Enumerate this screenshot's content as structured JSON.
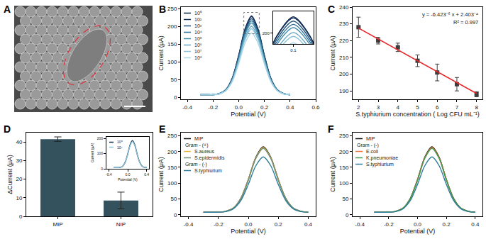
{
  "chart_data": [
    {
      "type": "image",
      "title": "A"
    },
    {
      "type": "line",
      "title": "B",
      "x_label": "Potential (V)",
      "y_label": "Current (μA)",
      "x": [
        -0.3,
        -0.25,
        -0.2,
        -0.15,
        -0.1,
        -0.05,
        0,
        0.05,
        0.1,
        0.15,
        0.2,
        0.25,
        0.3,
        0.35,
        0.4
      ],
      "series": [
        {
          "name": "10⁰",
          "color": "#0b2545",
          "values": [
            8,
            8,
            8,
            11,
            22,
            55,
            119,
            194,
            230,
            194,
            119,
            55,
            22,
            11,
            8
          ]
        },
        {
          "name": "10²",
          "color": "#13315c",
          "values": [
            8,
            8,
            8,
            11,
            22,
            54,
            118,
            193,
            228,
            193,
            118,
            54,
            22,
            11,
            8
          ]
        },
        {
          "name": "10³",
          "color": "#1d4e7a",
          "values": [
            8,
            8,
            8,
            11,
            22,
            53,
            115,
            188,
            222,
            188,
            115,
            53,
            22,
            11,
            8
          ]
        },
        {
          "name": "10⁴",
          "color": "#2a6f97",
          "values": [
            8,
            8,
            8,
            11,
            21,
            52,
            112,
            183,
            216,
            183,
            112,
            52,
            21,
            11,
            8
          ]
        },
        {
          "name": "10⁵",
          "color": "#468faf",
          "values": [
            8,
            8,
            8,
            11,
            21,
            51,
            109,
            178,
            210,
            178,
            109,
            51,
            21,
            11,
            8
          ]
        },
        {
          "name": "10⁶",
          "color": "#61a5c2",
          "values": [
            8,
            8,
            8,
            11,
            20,
            49,
            104,
            170,
            201,
            170,
            104,
            49,
            20,
            11,
            8
          ]
        },
        {
          "name": "10⁷",
          "color": "#89c2d9",
          "values": [
            8,
            8,
            8,
            10,
            20,
            47,
            101,
            164,
            194,
            164,
            101,
            47,
            20,
            10,
            8
          ]
        },
        {
          "name": "10⁸",
          "color": "#a9d6e5",
          "values": [
            8,
            8,
            8,
            10,
            19,
            45,
            95,
            154,
            182,
            154,
            95,
            45,
            19,
            10,
            8
          ]
        }
      ],
      "xlim": [
        -0.45,
        0.6
      ],
      "xticks": [
        -0.4,
        -0.2,
        {
          "value": 0,
          "label": "0.0"
        },
        0.2,
        0.4,
        0.6
      ],
      "ylim": [
        -5,
        255
      ],
      "yticks": [
        0,
        50,
        100,
        150,
        200,
        250
      ],
      "legend": "upper left",
      "inset": {
        "xlim": [
          0.04,
          0.16
        ],
        "ylim": [
          180,
          240
        ],
        "xticks": [
          0.1
        ],
        "yticks": [
          200
        ]
      }
    },
    {
      "type": "scatter",
      "title": "C",
      "x_label": "S.typhiurium concentration ( Log CFU mL⁻¹)",
      "y_label": "Current (μA)",
      "x": [
        2,
        3,
        4,
        5,
        6,
        7,
        8
      ],
      "values": [
        228,
        220,
        216,
        208,
        201,
        194,
        188
      ],
      "errors": [
        6,
        2,
        2.5,
        3.5,
        5,
        4,
        1.5
      ],
      "color": "#3d3d3d",
      "marker": "square",
      "fit": {
        "x": [
          2,
          8
        ],
        "values": [
          227.5,
          188.5
        ],
        "color": "#e8262a"
      },
      "annotations": [
        "y = -6.423⁻⁶ x + 2.403⁻⁴",
        "R² = 0.997"
      ],
      "xlim": [
        1.7,
        8.3
      ],
      "xticks": [
        2,
        3,
        4,
        5,
        6,
        7,
        8
      ],
      "ylim": [
        185,
        240
      ],
      "yticks": [
        190,
        200,
        210,
        220,
        230,
        240
      ]
    },
    {
      "type": "bar",
      "title": "D",
      "y_label": "ΔCurrent (μA)",
      "categories": [
        "MIP",
        "NIP"
      ],
      "values": [
        41.5,
        8.5
      ],
      "errors": [
        1.2,
        4.5
      ],
      "color": "#34515e",
      "ylim": [
        0,
        45
      ],
      "yticks": [
        0,
        10,
        20,
        30,
        40
      ],
      "inset": {
        "type": "line",
        "x_label": "Potential (V)",
        "y_label": "Current (μA)",
        "x": [
          -0.3,
          -0.25,
          -0.2,
          -0.15,
          -0.1,
          -0.05,
          0,
          0.05,
          0.1,
          0.15,
          0.2,
          0.25,
          0.3,
          0.35,
          0.4
        ],
        "series": [
          {
            "name": "10⁰",
            "color": "#0b2545",
            "values": [
              8,
              8,
              8,
              10,
              19,
              46,
              97,
              158,
              186,
              158,
              97,
              46,
              19,
              10,
              8
            ]
          },
          {
            "name": "10⁸",
            "color": "#89c2d9",
            "values": [
              8,
              8,
              8,
              10,
              19,
              44,
              94,
              152,
              180,
              152,
              94,
              44,
              19,
              10,
              8
            ]
          }
        ],
        "xlim": [
          -0.45,
          0.45
        ],
        "xticks": [
          -0.4,
          {
            "value": 0,
            "label": "0.0"
          },
          0.4
        ],
        "ylim": [
          0,
          210
        ],
        "yticks": [
          0,
          100,
          200
        ],
        "legend": "upper left"
      }
    },
    {
      "type": "line",
      "title": "E",
      "x_label": "Potential (V)",
      "y_label": "Current (μA)",
      "x": [
        -0.3,
        -0.25,
        -0.2,
        -0.15,
        -0.1,
        -0.05,
        0,
        0.05,
        0.1,
        0.15,
        0.2,
        0.25,
        0.3,
        0.35,
        0.4
      ],
      "series": [
        {
          "name": "MIP",
          "color": "#111111",
          "values": [
            8,
            8,
            8,
            11,
            21,
            52,
            112,
            182,
            215,
            182,
            112,
            52,
            21,
            11,
            8
          ]
        },
        {
          "name": "S.aureus",
          "group": "Gram - (+)",
          "color": "#e6b53d",
          "values": [
            8,
            8,
            8,
            11,
            21,
            51,
            111,
            180,
            213,
            180,
            111,
            51,
            21,
            11,
            8
          ]
        },
        {
          "name": "S.epidermidis",
          "group": "Gram - (+)",
          "color": "#6d8f7a",
          "values": [
            8,
            8,
            8,
            11,
            21,
            51,
            109,
            178,
            210,
            178,
            109,
            51,
            21,
            11,
            8
          ]
        },
        {
          "name": "S.typhiurium",
          "group": "Gram - (-)",
          "color": "#2e7d9a",
          "values": [
            8,
            8,
            8,
            10,
            19,
            45,
            96,
            155,
            183,
            155,
            96,
            45,
            19,
            10,
            8
          ]
        }
      ],
      "xlim": [
        -0.45,
        0.45
      ],
      "xticks": [
        -0.4,
        -0.2,
        {
          "value": 0,
          "label": "0.0"
        },
        0.2,
        0.4
      ],
      "ylim": [
        -5,
        260
      ],
      "yticks": [
        0,
        50,
        100,
        150,
        200,
        250
      ],
      "legend": "upper left"
    },
    {
      "type": "line",
      "title": "F",
      "x_label": "Potential (V)",
      "y_label": "Current (μA)",
      "x": [
        -0.3,
        -0.25,
        -0.2,
        -0.15,
        -0.1,
        -0.05,
        0,
        0.05,
        0.1,
        0.15,
        0.2,
        0.25,
        0.3,
        0.35,
        0.4
      ],
      "series": [
        {
          "name": "MIP",
          "color": "#111111",
          "values": [
            8,
            8,
            8,
            11,
            21,
            52,
            112,
            182,
            215,
            182,
            112,
            52,
            21,
            11,
            8
          ]
        },
        {
          "name": "E.coli",
          "group": "Gram - (-)",
          "color": "#e8743b",
          "values": [
            8,
            8,
            8,
            11,
            21,
            51,
            111,
            180,
            213,
            180,
            111,
            51,
            21,
            11,
            8
          ]
        },
        {
          "name": "K.pneumoniae",
          "group": "Gram - (-)",
          "color": "#3f9b4f",
          "values": [
            8,
            8,
            8,
            11,
            21,
            51,
            109,
            178,
            210,
            178,
            109,
            51,
            21,
            11,
            8
          ]
        },
        {
          "name": "S.typhiurium",
          "group": "Gram - (-)",
          "color": "#2e7d9a",
          "values": [
            8,
            8,
            8,
            10,
            19,
            45,
            96,
            155,
            183,
            155,
            96,
            45,
            19,
            10,
            8
          ]
        }
      ],
      "xlim": [
        -0.45,
        0.45
      ],
      "xticks": [
        -0.4,
        -0.2,
        {
          "value": 0,
          "label": "0.0"
        },
        0.2,
        0.4
      ],
      "ylim": [
        -5,
        260
      ],
      "yticks": [
        0,
        50,
        100,
        150,
        200,
        250
      ],
      "legend": "upper left"
    }
  ]
}
